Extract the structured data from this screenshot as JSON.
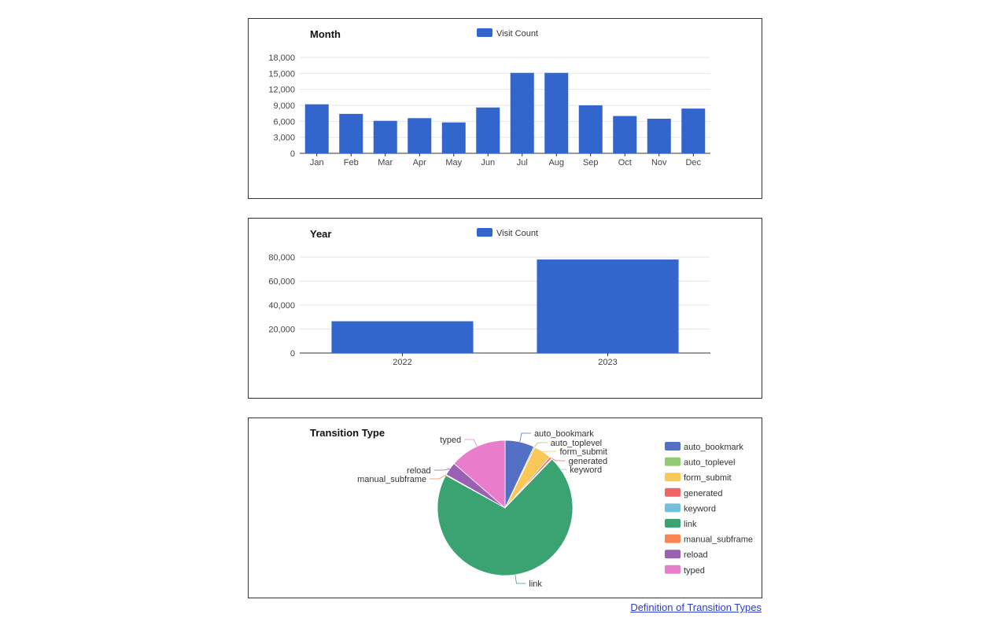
{
  "chart_data": [
    {
      "id": "month",
      "type": "bar",
      "title": "Month",
      "legend": [
        "Visit Count"
      ],
      "legend_position": "top",
      "categories": [
        "Jan",
        "Feb",
        "Mar",
        "Apr",
        "May",
        "Jun",
        "Jul",
        "Aug",
        "Sep",
        "Oct",
        "Nov",
        "Dec"
      ],
      "series": [
        {
          "name": "Visit Count",
          "values": [
            9200,
            7400,
            6100,
            6600,
            5800,
            8600,
            15100,
            15100,
            9000,
            7000,
            6500,
            8400
          ]
        }
      ],
      "yticks": [
        "0",
        "3,000",
        "6,000",
        "9,000",
        "12,000",
        "15,000",
        "18,000"
      ],
      "ylim": [
        0,
        18000
      ],
      "grid": true
    },
    {
      "id": "year",
      "type": "bar",
      "title": "Year",
      "legend": [
        "Visit Count"
      ],
      "legend_position": "top",
      "categories": [
        "2022",
        "2023"
      ],
      "series": [
        {
          "name": "Visit Count",
          "values": [
            26500,
            78000
          ]
        }
      ],
      "yticks": [
        "0",
        "20,000",
        "40,000",
        "60,000",
        "80,000"
      ],
      "ylim": [
        0,
        80000
      ],
      "grid": true
    },
    {
      "id": "transition",
      "type": "pie",
      "title": "Transition Type",
      "legend_position": "right",
      "labels": [
        "auto_bookmark",
        "auto_toplevel",
        "form_submit",
        "generated",
        "keyword",
        "link",
        "manual_subframe",
        "reload",
        "typed"
      ],
      "values": [
        7.0,
        0.3,
        4.2,
        0.5,
        0.2,
        70.8,
        0.2,
        3.2,
        13.6
      ],
      "colors": [
        "#5470c6",
        "#91cc75",
        "#fac858",
        "#ee6666",
        "#73c0de",
        "#3ba272",
        "#fc8452",
        "#9a60b4",
        "#ea7ccc"
      ]
    }
  ],
  "series_color": "#3366cc",
  "footer": {
    "link_text": "Definition of Transition Types"
  }
}
